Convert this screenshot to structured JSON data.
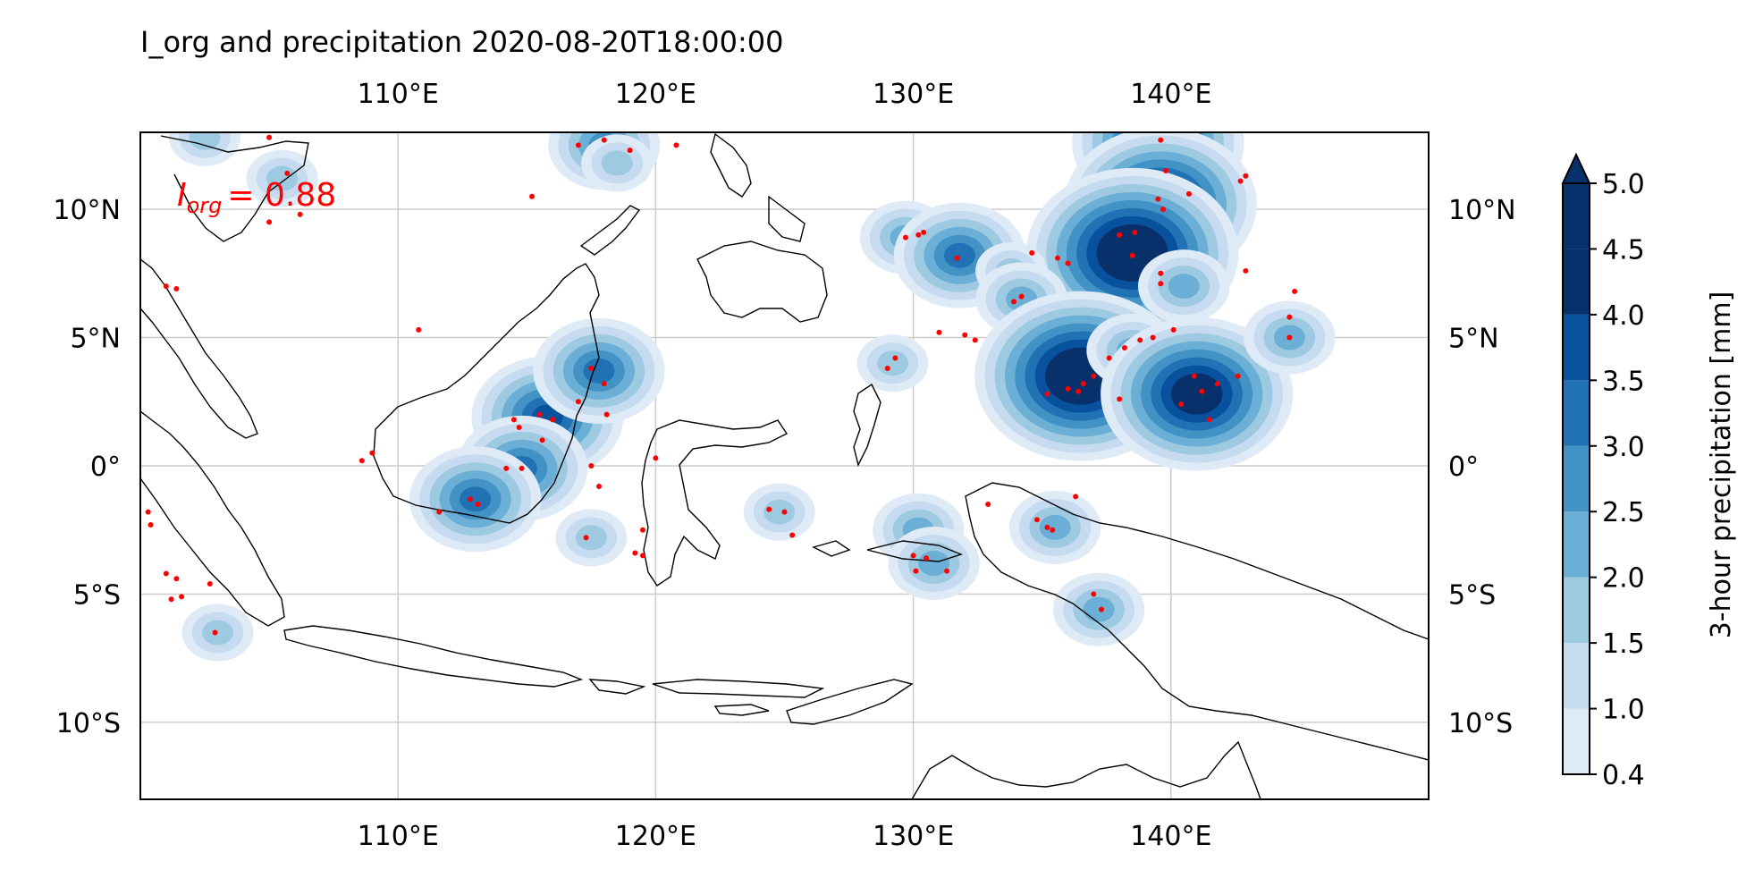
{
  "title": "I_org and precipitation 2020-08-20T18:00:00",
  "annotation": {
    "symbol": "I",
    "subscript": "org",
    "value": "= 0.88"
  },
  "map": {
    "lon_range": [
      100,
      150
    ],
    "lat_range": [
      -13,
      13
    ],
    "lon_ticks": [
      {
        "value": 110,
        "label": "110°E"
      },
      {
        "value": 120,
        "label": "120°E"
      },
      {
        "value": 130,
        "label": "130°E"
      },
      {
        "value": 140,
        "label": "140°E"
      }
    ],
    "lat_ticks": [
      {
        "value": 10,
        "label": "10°N"
      },
      {
        "value": 5,
        "label": "5°N"
      },
      {
        "value": 0,
        "label": "0°"
      },
      {
        "value": -5,
        "label": "5°S"
      },
      {
        "value": -10,
        "label": "10°S"
      }
    ],
    "gridlines": true,
    "colors": {
      "grid": "#cccccc",
      "coast": "#000000",
      "points": "#ff0000"
    }
  },
  "colorbar": {
    "label": "3-hour precipitation [mm]",
    "levels": [
      "0.4",
      "1.0",
      "1.5",
      "2.0",
      "2.5",
      "3.0",
      "3.5",
      "4.0",
      "4.5",
      "5.0"
    ],
    "colors": [
      "#deebf7",
      "#c6dbef",
      "#9ecae1",
      "#6baed6",
      "#4292c6",
      "#2171b5",
      "#08519c",
      "#08306b",
      "#08306b"
    ],
    "extend": "max"
  },
  "chart_data": {
    "type": "map",
    "precip_cells": [
      {
        "lon": 102.5,
        "lat": 12.8,
        "amount": 1.5
      },
      {
        "lon": 105.5,
        "lat": 11.2,
        "amount": 1.5
      },
      {
        "lon": 118.0,
        "lat": 12.5,
        "amount": 2.5
      },
      {
        "lon": 118.5,
        "lat": 11.8,
        "amount": 1.5
      },
      {
        "lon": 139.5,
        "lat": 12.6,
        "amount": 4.0
      },
      {
        "lon": 139.6,
        "lat": 10.2,
        "amount": 4.5
      },
      {
        "lon": 138.5,
        "lat": 8.3,
        "amount": 5.0
      },
      {
        "lon": 140.5,
        "lat": 7.0,
        "amount": 2.0
      },
      {
        "lon": 129.7,
        "lat": 8.9,
        "amount": 2.0
      },
      {
        "lon": 131.8,
        "lat": 8.2,
        "amount": 3.0
      },
      {
        "lon": 133.8,
        "lat": 7.6,
        "amount": 1.5
      },
      {
        "lon": 134.2,
        "lat": 6.5,
        "amount": 2.0
      },
      {
        "lon": 136.5,
        "lat": 3.5,
        "amount": 5.0
      },
      {
        "lon": 138.5,
        "lat": 4.5,
        "amount": 2.0
      },
      {
        "lon": 141.0,
        "lat": 2.8,
        "amount": 4.5
      },
      {
        "lon": 144.6,
        "lat": 5.0,
        "amount": 2.0
      },
      {
        "lon": 129.2,
        "lat": 4.0,
        "amount": 1.5
      },
      {
        "lon": 115.8,
        "lat": 1.9,
        "amount": 3.5
      },
      {
        "lon": 114.8,
        "lat": -0.1,
        "amount": 3.0
      },
      {
        "lon": 117.8,
        "lat": 3.7,
        "amount": 3.0
      },
      {
        "lon": 113.0,
        "lat": -1.3,
        "amount": 3.0
      },
      {
        "lon": 117.5,
        "lat": -2.8,
        "amount": 1.5
      },
      {
        "lon": 130.2,
        "lat": -2.5,
        "amount": 2.0
      },
      {
        "lon": 130.8,
        "lat": -3.8,
        "amount": 2.0
      },
      {
        "lon": 124.8,
        "lat": -1.8,
        "amount": 1.5
      },
      {
        "lon": 135.5,
        "lat": -2.4,
        "amount": 2.0
      },
      {
        "lon": 137.2,
        "lat": -5.6,
        "amount": 2.0
      },
      {
        "lon": 103.0,
        "lat": -6.5,
        "amount": 1.5
      }
    ],
    "convective_points": [
      [
        105.0,
        12.8
      ],
      [
        105.7,
        11.4
      ],
      [
        106.2,
        9.8
      ],
      [
        105.0,
        9.5
      ],
      [
        101.0,
        7.0
      ],
      [
        101.4,
        6.9
      ],
      [
        110.8,
        5.3
      ],
      [
        115.2,
        10.5
      ],
      [
        117.0,
        12.5
      ],
      [
        118.0,
        12.7
      ],
      [
        119.0,
        12.3
      ],
      [
        120.8,
        12.5
      ],
      [
        114.5,
        1.8
      ],
      [
        115.5,
        2.0
      ],
      [
        116.0,
        1.8
      ],
      [
        115.6,
        1.0
      ],
      [
        114.7,
        1.5
      ],
      [
        117.5,
        3.8
      ],
      [
        118.0,
        3.2
      ],
      [
        117.0,
        2.5
      ],
      [
        118.1,
        2.0
      ],
      [
        114.2,
        -0.1
      ],
      [
        114.8,
        -0.1
      ],
      [
        112.8,
        -1.3
      ],
      [
        113.1,
        -1.5
      ],
      [
        111.6,
        -1.8
      ],
      [
        117.5,
        0.0
      ],
      [
        117.8,
        -0.8
      ],
      [
        117.3,
        -2.8
      ],
      [
        108.6,
        0.2
      ],
      [
        109.0,
        0.5
      ],
      [
        119.5,
        -2.5
      ],
      [
        119.2,
        -3.4
      ],
      [
        119.5,
        -3.5
      ],
      [
        120.0,
        0.3
      ],
      [
        124.4,
        -1.7
      ],
      [
        125.0,
        -1.8
      ],
      [
        125.3,
        -2.7
      ],
      [
        130.0,
        -3.5
      ],
      [
        130.5,
        -3.6
      ],
      [
        131.3,
        -4.1
      ],
      [
        130.1,
        -4.1
      ],
      [
        132.9,
        -1.5
      ],
      [
        134.8,
        -2.1
      ],
      [
        135.2,
        -2.4
      ],
      [
        135.4,
        -2.5
      ],
      [
        136.3,
        -1.2
      ],
      [
        137.0,
        -5.0
      ],
      [
        137.3,
        -5.6
      ],
      [
        129.3,
        4.2
      ],
      [
        129.0,
        3.8
      ],
      [
        129.7,
        8.9
      ],
      [
        130.2,
        9.0
      ],
      [
        130.4,
        9.1
      ],
      [
        131.7,
        8.1
      ],
      [
        131.0,
        5.2
      ],
      [
        132.0,
        5.1
      ],
      [
        132.4,
        4.9
      ],
      [
        133.9,
        6.4
      ],
      [
        134.2,
        6.6
      ],
      [
        134.6,
        8.3
      ],
      [
        135.6,
        8.1
      ],
      [
        136.0,
        7.9
      ],
      [
        138.0,
        9.0
      ],
      [
        138.6,
        9.1
      ],
      [
        138.5,
        8.2
      ],
      [
        139.6,
        7.5
      ],
      [
        139.6,
        7.1
      ],
      [
        139.7,
        10.0
      ],
      [
        139.5,
        10.4
      ],
      [
        139.8,
        11.5
      ],
      [
        140.7,
        10.6
      ],
      [
        139.6,
        12.7
      ],
      [
        135.2,
        2.8
      ],
      [
        136.0,
        3.0
      ],
      [
        136.4,
        2.9
      ],
      [
        136.6,
        3.2
      ],
      [
        137.0,
        3.5
      ],
      [
        137.6,
        4.2
      ],
      [
        138.2,
        4.6
      ],
      [
        138.8,
        4.9
      ],
      [
        139.3,
        5.0
      ],
      [
        140.1,
        5.3
      ],
      [
        138.0,
        2.6
      ],
      [
        140.4,
        2.4
      ],
      [
        140.9,
        3.5
      ],
      [
        141.2,
        2.9
      ],
      [
        141.5,
        1.8
      ],
      [
        141.8,
        3.2
      ],
      [
        142.6,
        3.5
      ],
      [
        142.9,
        7.6
      ],
      [
        142.7,
        11.1
      ],
      [
        142.9,
        11.3
      ],
      [
        144.6,
        5.8
      ],
      [
        144.8,
        6.8
      ],
      [
        144.6,
        5.0
      ],
      [
        101.0,
        -4.2
      ],
      [
        101.4,
        -4.4
      ],
      [
        101.2,
        -5.2
      ],
      [
        101.6,
        -5.1
      ],
      [
        102.7,
        -4.6
      ],
      [
        102.9,
        -6.5
      ],
      [
        100.3,
        -1.8
      ],
      [
        100.4,
        -2.3
      ]
    ]
  }
}
